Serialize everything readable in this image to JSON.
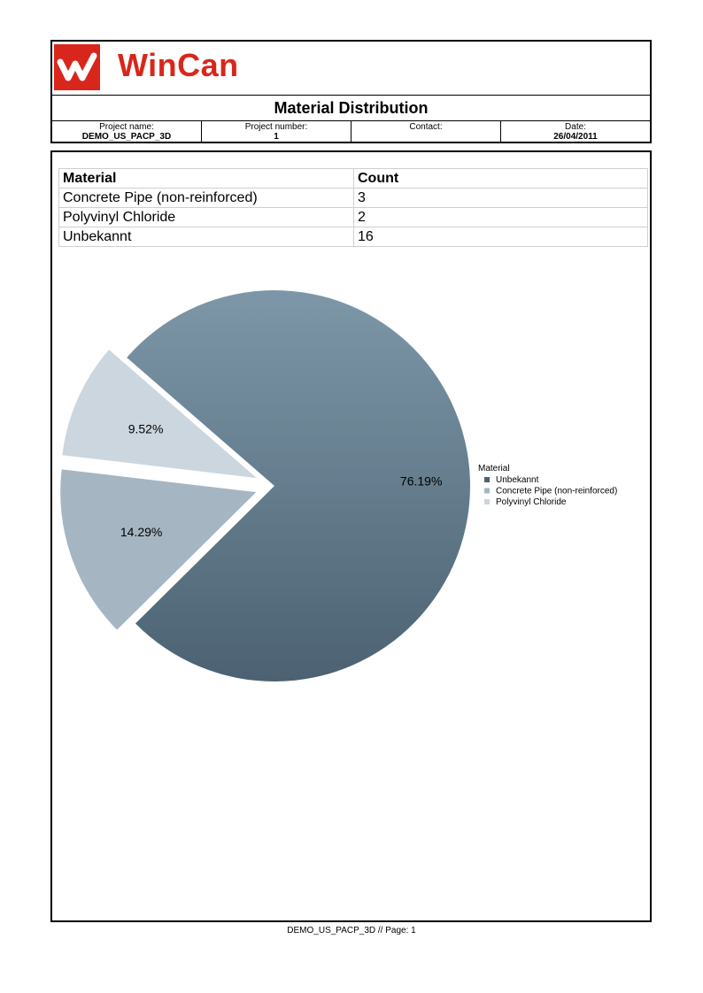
{
  "brand": {
    "name": "WinCan",
    "color": "#d9261c"
  },
  "report_title": "Material Distribution",
  "info": [
    {
      "label": "Project name:",
      "value": "DEMO_US_PACP_3D"
    },
    {
      "label": "Project number:",
      "value": "1"
    },
    {
      "label": "Contact:",
      "value": ""
    },
    {
      "label": "Date:",
      "value": "26/04/2011"
    }
  ],
  "table": {
    "headers": [
      "Material",
      "Count"
    ],
    "rows": [
      [
        "Concrete Pipe (non-reinforced)",
        "3"
      ],
      [
        "Polyvinyl Chloride",
        "2"
      ],
      [
        "Unbekannt",
        "16"
      ]
    ]
  },
  "chart_data": {
    "type": "pie",
    "legend_title": "Material",
    "legend_position": "right",
    "slices": [
      {
        "name": "Unbekannt",
        "value": 16,
        "label": "76.19%",
        "color": "#5a7080"
      },
      {
        "name": "Concrete Pipe (non-reinforced)",
        "value": 3,
        "label": "14.29%",
        "color": "#a6b5c2"
      },
      {
        "name": "Polyvinyl Chloride",
        "value": 2,
        "label": "9.52%",
        "color": "#ccd6df"
      }
    ]
  },
  "footer": "DEMO_US_PACP_3D // Page: 1"
}
